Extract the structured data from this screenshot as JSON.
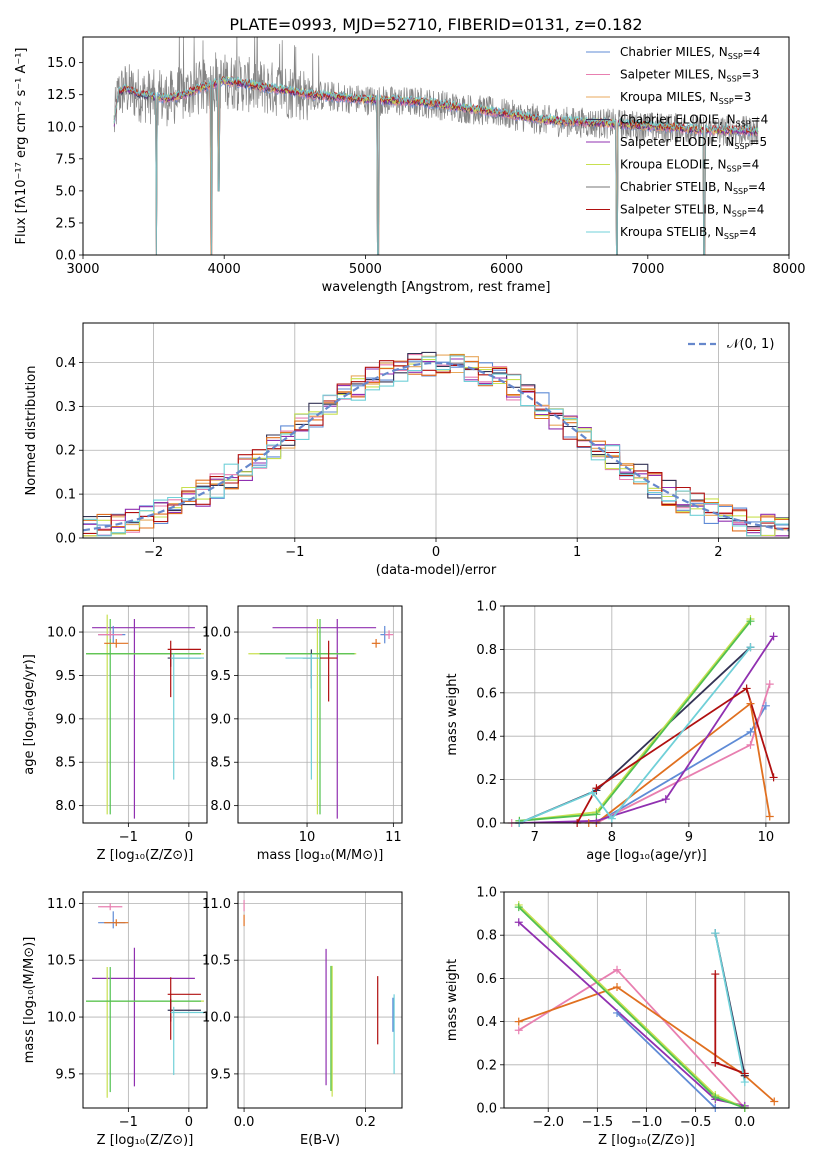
{
  "figure": {
    "title": "PLATE=0993, MJD=52710, FIBERID=0131, z=0.182"
  },
  "colors": {
    "Chabrier MILES": "#5f8bd6",
    "Salpeter MILES": "#e87fb0",
    "Kroupa MILES": "#e8a85c",
    "Chabrier ELODIE": "#333355",
    "Salpeter ELODIE": "#9030b0",
    "Kroupa ELODIE": "#c8e050",
    "Chabrier STELIB": "#777777",
    "Salpeter STELIB": "#b01010",
    "Kroupa STELIB": "#70d0d8",
    "extra_orange": "#e07020",
    "extra_green": "#50c050"
  },
  "chart_data": [
    {
      "id": "spectrum",
      "type": "line",
      "title": "PLATE=0993, MJD=52710, FIBERID=0131, z=0.182",
      "xlabel": "wavelength [Angstrom, rest frame]",
      "ylabel": "Flux [fλ10⁻¹⁷ erg cm⁻² s⁻¹ A⁻¹]",
      "xlim": [
        3000,
        8000
      ],
      "ylim": [
        0,
        17
      ],
      "xticks": [
        "3000",
        "4000",
        "5000",
        "6000",
        "7000",
        "8000"
      ],
      "yticks": [
        "0.0",
        "2.5",
        "5.0",
        "7.5",
        "10.0",
        "12.5",
        "15.0"
      ],
      "legend": "top-right",
      "legend_entries": [
        {
          "label": "Chabrier MILES, N",
          "sub": "SSP",
          "suffix": "=4",
          "color_key": "Chabrier MILES"
        },
        {
          "label": "Salpeter MILES, N",
          "sub": "SSP",
          "suffix": "=3",
          "color_key": "Salpeter MILES"
        },
        {
          "label": "Kroupa MILES, N",
          "sub": "SSP",
          "suffix": "=3",
          "color_key": "Kroupa MILES"
        },
        {
          "label": "Chabrier ELODIE, N",
          "sub": "SSP",
          "suffix": "=4",
          "color_key": "Chabrier ELODIE"
        },
        {
          "label": "Salpeter ELODIE, N",
          "sub": "SSP",
          "suffix": "=5",
          "color_key": "Salpeter ELODIE"
        },
        {
          "label": "Kroupa ELODIE, N",
          "sub": "SSP",
          "suffix": "=4",
          "color_key": "Kroupa ELODIE"
        },
        {
          "label": "Chabrier STELIB, N",
          "sub": "SSP",
          "suffix": "=4",
          "color_key": "Chabrier STELIB"
        },
        {
          "label": "Salpeter STELIB, N",
          "sub": "SSP",
          "suffix": "=4",
          "color_key": "Salpeter STELIB"
        },
        {
          "label": "Kroupa STELIB, N",
          "sub": "SSP",
          "suffix": "=4",
          "color_key": "Kroupa STELIB"
        }
      ],
      "continuum": {
        "x": [
          3220,
          3250,
          3300,
          3400,
          3500,
          3600,
          3700,
          3800,
          3900,
          4000,
          4100,
          4200,
          4300,
          4400,
          4600,
          4800,
          5000,
          5200,
          5400,
          5600,
          5800,
          6000,
          6200,
          6400,
          6600,
          6800,
          7000,
          7200,
          7400,
          7600,
          7800
        ],
        "y": [
          10.2,
          12.6,
          12.9,
          12.5,
          12.3,
          12.2,
          12.4,
          12.9,
          13.2,
          13.6,
          13.4,
          13.2,
          13.0,
          12.9,
          12.5,
          12.3,
          12.1,
          12.0,
          11.9,
          11.6,
          11.3,
          11.0,
          10.6,
          10.4,
          10.3,
          10.2,
          10.0,
          9.9,
          9.7,
          9.7,
          9.6
        ]
      },
      "dips": [
        {
          "x": 3520,
          "y": 0
        },
        {
          "x": 3910,
          "y": 0
        },
        {
          "x": 3960,
          "y": 5.0
        },
        {
          "x": 5090,
          "y": 0
        },
        {
          "x": 6780,
          "y": 0
        },
        {
          "x": 7400,
          "y": 0
        }
      ]
    },
    {
      "id": "residuals",
      "type": "histogram",
      "xlabel": "(data-model)/error",
      "ylabel": "Normed distribution",
      "xlim": [
        -2.5,
        2.5
      ],
      "ylim": [
        0,
        0.49
      ],
      "xticks": [
        "−2",
        "−1",
        "0",
        "1",
        "2"
      ],
      "yticks": [
        "0.0",
        "0.1",
        "0.2",
        "0.3",
        "0.4"
      ],
      "legend": "top-right",
      "legend_label": "𝒩(0, 1)",
      "bin_width": 0.1
    },
    {
      "id": "age_vs_Z",
      "type": "scatter",
      "xlabel": "Z [log₁₀(Z/Z⊙)]",
      "ylabel": "age  [log₁₀(age/yr)]",
      "xlim": [
        -1.75,
        0.3
      ],
      "ylim": [
        7.8,
        10.3
      ],
      "xticks": [
        "−1",
        "0"
      ],
      "yticks": [
        "8.0",
        "8.5",
        "9.0",
        "9.5",
        "10.0"
      ]
    },
    {
      "id": "age_vs_mass",
      "type": "scatter",
      "xlabel": "mass [log₁₀(M/M⊙)]",
      "xlim": [
        9.2,
        11.1
      ],
      "ylim": [
        7.8,
        10.3
      ],
      "xticks": [
        "10",
        "11"
      ],
      "yticks": [
        "8.0",
        "8.5",
        "9.0",
        "9.5",
        "10.0"
      ]
    },
    {
      "id": "massweight_vs_age",
      "type": "line",
      "xlabel": "age  [log₁₀(age/yr)]",
      "ylabel": "mass weight",
      "xlim": [
        6.6,
        10.3
      ],
      "ylim": [
        0,
        1
      ],
      "xticks": [
        "7",
        "8",
        "9",
        "10"
      ],
      "yticks": [
        "0.0",
        "0.2",
        "0.4",
        "0.6",
        "0.8",
        "1.0"
      ],
      "series": [
        {
          "key": "Chabrier MILES",
          "x": [
            6.8,
            7.8,
            9.8,
            10.0
          ],
          "y": [
            0.0,
            0.0,
            0.42,
            0.54
          ]
        },
        {
          "key": "Salpeter MILES",
          "x": [
            6.7,
            7.8,
            9.8,
            10.05
          ],
          "y": [
            0.0,
            0.0,
            0.36,
            0.64
          ]
        },
        {
          "key": "extra_orange",
          "x": [
            7.7,
            7.8,
            9.8,
            10.05
          ],
          "y": [
            0.0,
            0.0,
            0.55,
            0.03
          ]
        },
        {
          "key": "Chabrier ELODIE",
          "x": [
            6.8,
            7.8,
            9.8
          ],
          "y": [
            0.0,
            0.15,
            0.81
          ]
        },
        {
          "key": "Salpeter ELODIE",
          "x": [
            6.8,
            7.8,
            8.7,
            10.1
          ],
          "y": [
            0.0,
            0.01,
            0.11,
            0.86
          ]
        },
        {
          "key": "Kroupa ELODIE",
          "x": [
            6.8,
            7.8,
            9.8
          ],
          "y": [
            0.01,
            0.05,
            0.94
          ]
        },
        {
          "key": "extra_green",
          "x": [
            6.8,
            7.8,
            9.8
          ],
          "y": [
            0.01,
            0.04,
            0.93
          ]
        },
        {
          "key": "Salpeter STELIB",
          "x": [
            7.55,
            7.8,
            9.75,
            10.1
          ],
          "y": [
            0.0,
            0.16,
            0.62,
            0.21
          ]
        },
        {
          "key": "Kroupa STELIB",
          "x": [
            6.8,
            7.75,
            8.0,
            9.8
          ],
          "y": [
            0.0,
            0.14,
            0.02,
            0.81
          ]
        }
      ]
    },
    {
      "id": "mass_vs_Z",
      "type": "scatter",
      "xlabel": "Z [log₁₀(Z/Z⊙)]",
      "ylabel": "mass [log₁₀(M/M⊙)]",
      "xlim": [
        -1.75,
        0.3
      ],
      "ylim": [
        9.2,
        11.1
      ],
      "xticks": [
        "−1",
        "0"
      ],
      "yticks": [
        "9.5",
        "10.0",
        "10.5",
        "11.0"
      ]
    },
    {
      "id": "mass_vs_ebv",
      "type": "scatter",
      "xlabel": "E(B-V)",
      "xlim": [
        -0.01,
        0.26
      ],
      "ylim": [
        9.2,
        11.1
      ],
      "xticks": [
        "0.0",
        "0.2"
      ],
      "yticks": [
        "9.5",
        "10.0",
        "10.5",
        "11.0"
      ]
    },
    {
      "id": "massweight_vs_Z",
      "type": "line",
      "xlabel": "Z [log₁₀(Z/Z⊙)]",
      "ylabel": "mass weight",
      "xlim": [
        -2.45,
        0.45
      ],
      "ylim": [
        0,
        1
      ],
      "xticks": [
        "−2.0",
        "−1.5",
        "−1.0",
        "−0.5",
        "0.0"
      ],
      "yticks": [
        "0.0",
        "0.2",
        "0.4",
        "0.6",
        "0.8",
        "1.0"
      ],
      "series": [
        {
          "key": "Chabrier MILES",
          "x": [
            -1.3,
            -0.3,
            0.0
          ],
          "y": [
            0.44,
            0.0,
            0.0
          ]
        },
        {
          "key": "Salpeter MILES",
          "x": [
            -2.3,
            -1.3,
            0.0
          ],
          "y": [
            0.36,
            0.64,
            0.0
          ]
        },
        {
          "key": "extra_orange",
          "x": [
            -2.3,
            -1.3,
            0.0,
            0.3
          ],
          "y": [
            0.4,
            0.56,
            0.15,
            0.03
          ]
        },
        {
          "key": "Salpeter ELODIE",
          "x": [
            -2.3,
            -0.3,
            0.0
          ],
          "y": [
            0.86,
            0.04,
            0.01
          ]
        },
        {
          "key": "Kroupa ELODIE",
          "x": [
            -2.3,
            -0.3,
            0.0
          ],
          "y": [
            0.94,
            0.06,
            0.0
          ]
        },
        {
          "key": "extra_green",
          "x": [
            -2.3,
            -0.3,
            0.0
          ],
          "y": [
            0.93,
            0.05,
            0.0
          ]
        },
        {
          "key": "Chabrier ELODIE",
          "x": [
            -0.3,
            0.0
          ],
          "y": [
            0.81,
            0.15
          ]
        },
        {
          "key": "Salpeter STELIB",
          "x": [
            -0.3,
            -0.3,
            0.0
          ],
          "y": [
            0.62,
            0.21,
            0.16
          ]
        },
        {
          "key": "Kroupa STELIB",
          "x": [
            -0.3,
            0.0
          ],
          "y": [
            0.81,
            0.12
          ]
        }
      ]
    }
  ]
}
